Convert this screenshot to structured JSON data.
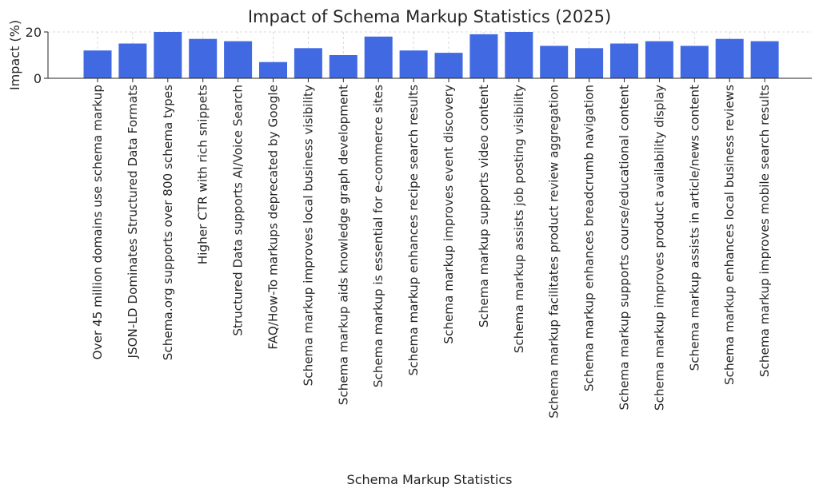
{
  "chart_data": {
    "type": "bar",
    "title": "Impact of Schema Markup Statistics (2025)",
    "xlabel": "Schema Markup Statistics",
    "ylabel": "Impact (%)",
    "ylim": [
      0,
      20
    ],
    "yticks": [
      0,
      20
    ],
    "grid": true,
    "bar_color": "#4169e1",
    "categories": [
      "Over 45 million domains use schema markup",
      "JSON-LD Dominates Structured Data Formats",
      "Schema.org supports over 800 schema types",
      "Higher CTR with rich snippets",
      "Structured Data supports AI/Voice Search",
      "FAQ/How-To markups deprecated by Google",
      "Schema markup improves local business visibility",
      "Schema markup aids knowledge graph development",
      "Schema markup is essential for e-commerce sites",
      "Schema markup enhances recipe search results",
      "Schema markup improves event discovery",
      "Schema markup supports video content",
      "Schema markup assists job posting visibility",
      "Schema markup facilitates product review aggregation",
      "Schema markup enhances breadcrumb navigation",
      "Schema markup supports course/educational content",
      "Schema markup improves product availability display",
      "Schema markup assists in article/news content",
      "Schema markup enhances local business reviews",
      "Schema markup improves mobile search results"
    ],
    "values": [
      12,
      15,
      20,
      17,
      16,
      7,
      13,
      10,
      18,
      12,
      11,
      19,
      20,
      14,
      13,
      15,
      16,
      14,
      17,
      16
    ]
  }
}
